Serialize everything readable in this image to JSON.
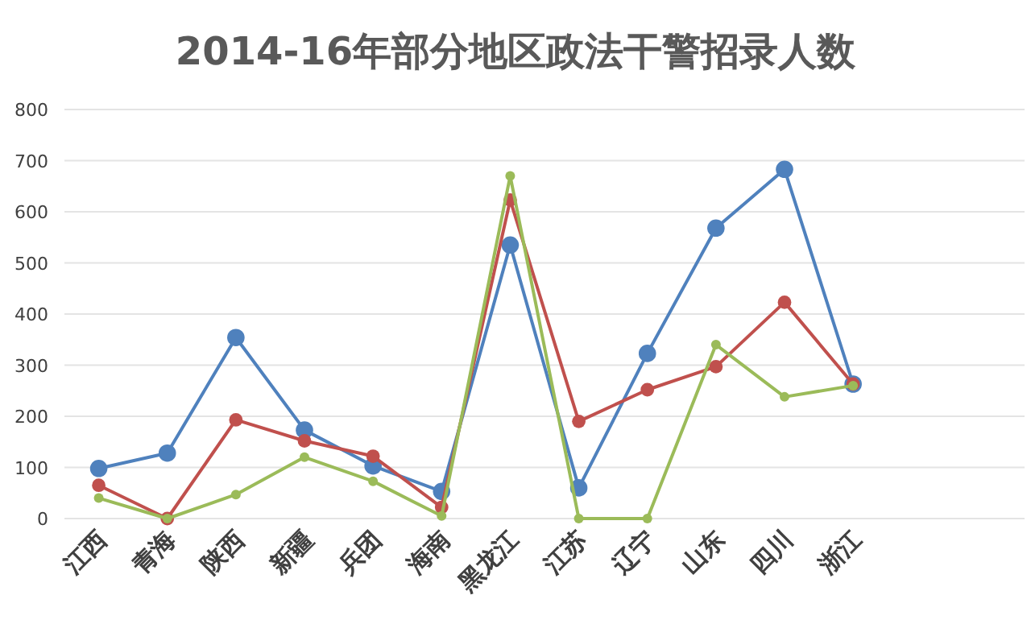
{
  "chart_data": {
    "type": "line",
    "title": "2014-16年部分地区政法干警招录人数",
    "categories": [
      "江西",
      "青海",
      "陕西",
      "新疆",
      "兵团",
      "海南",
      "黑龙江",
      "江苏",
      "辽宁",
      "山东",
      "四川",
      "浙江",
      null,
      null
    ],
    "series": [
      {
        "color": "#4f81bd",
        "values": [
          98,
          128,
          354,
          173,
          103,
          53,
          535,
          60,
          323,
          568,
          683,
          263,
          null,
          null
        ]
      },
      {
        "color": "#c0504d",
        "values": [
          65,
          0,
          193,
          152,
          122,
          22,
          623,
          190,
          252,
          297,
          423,
          263,
          null,
          null
        ]
      },
      {
        "color": "#9bbb59",
        "values": [
          40,
          0,
          47,
          120,
          73,
          5,
          670,
          0,
          0,
          340,
          238,
          260,
          null,
          null
        ]
      }
    ],
    "ylim": [
      0,
      800
    ],
    "yticks": [
      0,
      100,
      200,
      300,
      400,
      500,
      600,
      700,
      800
    ],
    "grid": "y",
    "marker": "circle",
    "line_style": "solid"
  }
}
